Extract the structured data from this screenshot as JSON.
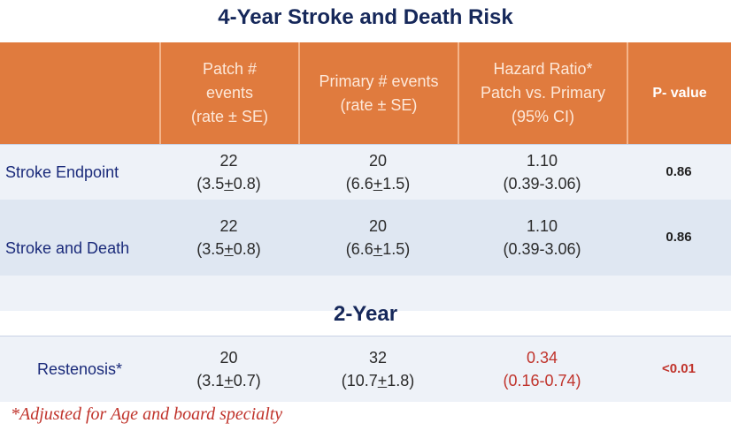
{
  "title": "4-Year Stroke and Death Risk",
  "header": {
    "col0": "",
    "col1": [
      "Patch #",
      "events",
      "(rate ± SE)"
    ],
    "col2": [
      "Primary  # events",
      "(rate ± SE)"
    ],
    "col3": [
      "Hazard Ratio*",
      "Patch vs. Primary",
      "(95% CI)"
    ],
    "col4": "P-  value"
  },
  "rows": [
    {
      "label": "Stroke Endpoint",
      "patch": {
        "events": "22",
        "rate_pre": "(3.5",
        "pm": "+",
        "rate_post": "0.8)"
      },
      "primary": {
        "events": "20",
        "rate_pre": "(6.6",
        "pm": "+",
        "rate_post": "1.5)"
      },
      "hr": {
        "value": "1.10",
        "ci": "(0.39-3.06)"
      },
      "p": "0.86"
    },
    {
      "label": "Stroke and Death",
      "patch": {
        "events": "22",
        "rate_pre": "(3.5",
        "pm": "+",
        "rate_post": "0.8)"
      },
      "primary": {
        "events": "20",
        "rate_pre": "(6.6",
        "pm": "+",
        "rate_post": "1.5)"
      },
      "hr": {
        "value": "1.10",
        "ci": "(0.39-3.06)"
      },
      "p": "0.86"
    }
  ],
  "subtitle": "2-Year",
  "restenosis": {
    "label": "Restenosis*",
    "patch": {
      "events": "20",
      "rate_pre": "(3.1",
      "pm": "+",
      "rate_post": "0.7)"
    },
    "primary": {
      "events": "32",
      "rate_pre": "(10.7",
      "pm": "+",
      "rate_post": "1.8)"
    },
    "hr": {
      "value": "0.34",
      "ci": "(0.16-0.74)"
    },
    "p": "<0.01"
  },
  "footnote": "*Adjusted for Age and board specialty",
  "colors": {
    "header_bg": "#e07b3e",
    "row_light": "#eef2f8",
    "row_dark": "#dfe7f2",
    "title": "#16285a",
    "highlight_red": "#c0332b"
  }
}
